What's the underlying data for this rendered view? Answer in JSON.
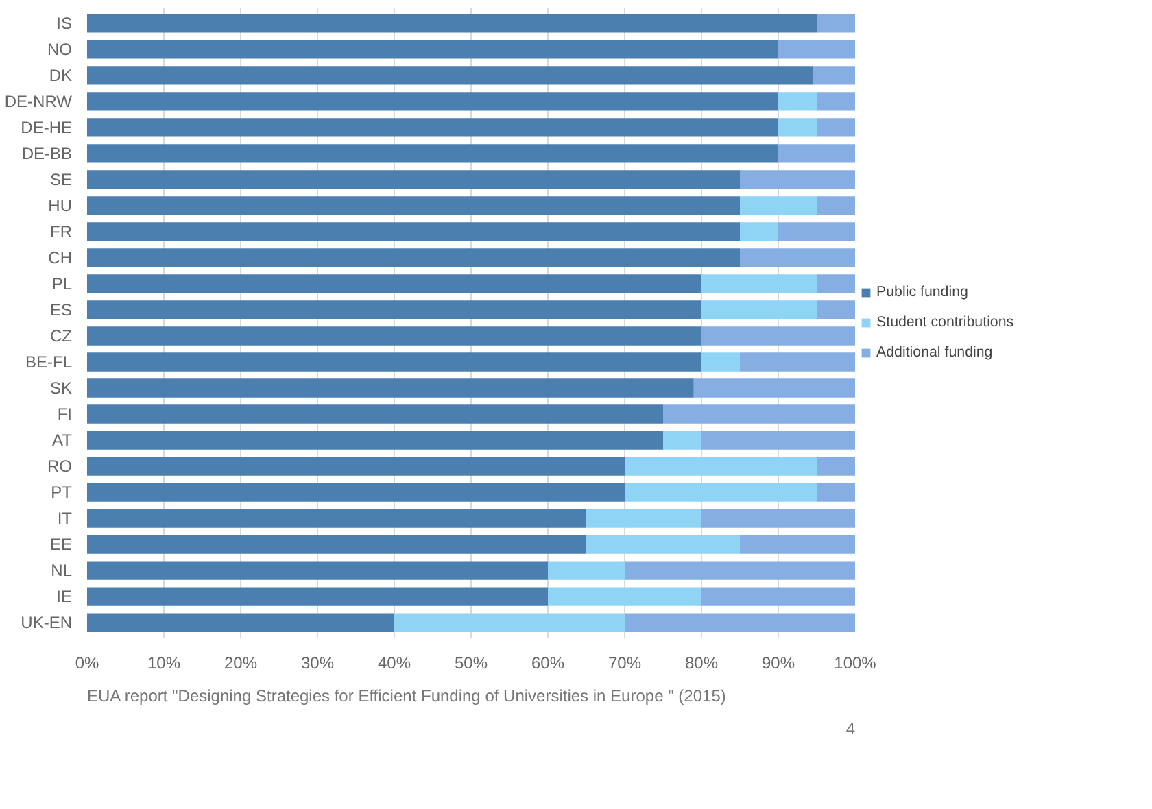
{
  "chart_data": {
    "type": "bar",
    "orientation": "horizontal",
    "stacked": true,
    "categories": [
      "IS",
      "NO",
      "DK",
      "DE-NRW",
      "DE-HE",
      "DE-BB",
      "SE",
      "HU",
      "FR",
      "CH",
      "PL",
      "ES",
      "CZ",
      "BE-FL",
      "SK",
      "FI",
      "AT",
      "RO",
      "PT",
      "IT",
      "EE",
      "NL",
      "IE",
      "UK-EN"
    ],
    "series": [
      {
        "name": "Public funding",
        "color": "#4a7fb0",
        "values": [
          95,
          90,
          94.5,
          90,
          90,
          90,
          85,
          85,
          85,
          85,
          80,
          80,
          80,
          80,
          79,
          75,
          75,
          70,
          70,
          65,
          65,
          60,
          60,
          40
        ]
      },
      {
        "name": "Student contributions",
        "color": "#8fd3f5",
        "values": [
          0,
          0,
          0,
          5,
          5,
          0,
          0,
          10,
          5,
          0,
          15,
          15,
          0,
          5,
          0,
          0,
          5,
          25,
          25,
          15,
          20,
          10,
          20,
          30
        ]
      },
      {
        "name": "Additional funding",
        "color": "#86aee3",
        "values": [
          5,
          10,
          5.5,
          5,
          5,
          10,
          15,
          5,
          10,
          15,
          5,
          5,
          20,
          15,
          21,
          25,
          20,
          5,
          5,
          20,
          15,
          30,
          20,
          30
        ]
      }
    ],
    "xlim": [
      0,
      100
    ],
    "xticks": [
      {
        "value": 0,
        "label": "0%"
      },
      {
        "value": 10,
        "label": "10%"
      },
      {
        "value": 20,
        "label": "20%"
      },
      {
        "value": 30,
        "label": "30%"
      },
      {
        "value": 40,
        "label": "40%"
      },
      {
        "value": 50,
        "label": "50%"
      },
      {
        "value": 60,
        "label": "60%"
      },
      {
        "value": 70,
        "label": "70%"
      },
      {
        "value": 80,
        "label": "80%"
      },
      {
        "value": 90,
        "label": "90%"
      },
      {
        "value": 100,
        "label": "100%"
      }
    ],
    "grid": "x",
    "legend": "right",
    "annotations": [
      "EUA report \"Designing Strategies for Efficient Funding of Universities in Europe \" (2015)",
      "4"
    ]
  }
}
